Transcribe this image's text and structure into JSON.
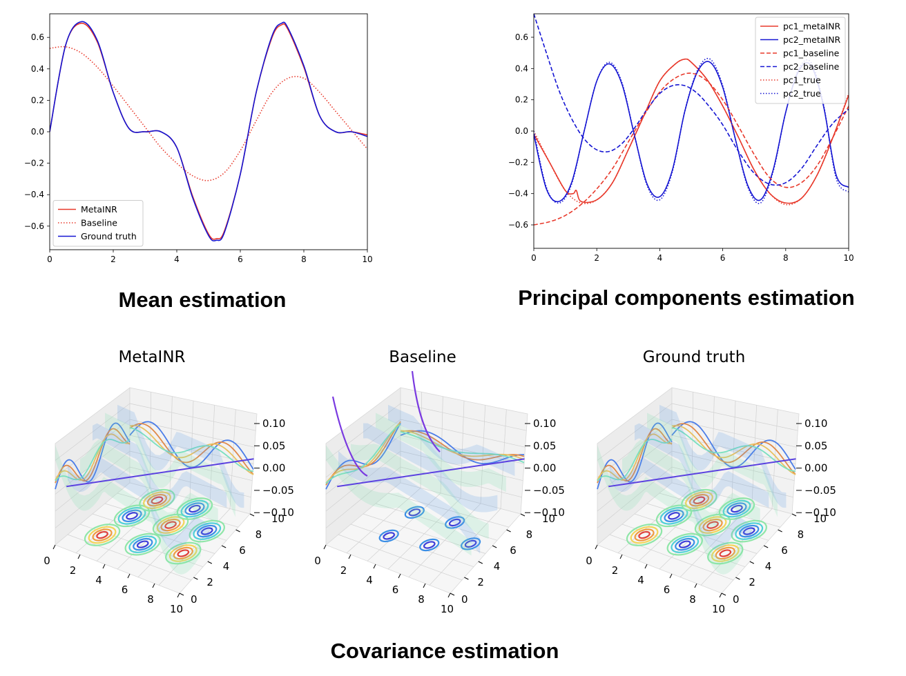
{
  "captions": {
    "mean": "Mean estimation",
    "pc": "Principal components estimation",
    "cov": "Covariance estimation"
  },
  "chart_data": [
    {
      "type": "line",
      "xlim": [
        0,
        10
      ],
      "ylim": [
        -0.75,
        0.75
      ],
      "xticks": [
        0,
        2,
        4,
        6,
        8,
        10
      ],
      "yticks": [
        -0.6,
        -0.4,
        -0.2,
        0.0,
        0.2,
        0.4,
        0.6
      ],
      "legend_position": "lower-left",
      "series": [
        {
          "name": "MetaINR",
          "color": "#e8382a",
          "style": "solid",
          "x": [
            0,
            0.5,
            1.0,
            1.5,
            2.0,
            2.5,
            3.0,
            3.5,
            4.0,
            4.5,
            5.0,
            5.25,
            5.5,
            6.0,
            6.5,
            7.0,
            7.3,
            7.5,
            8.0,
            8.5,
            9.0,
            9.5,
            10.0
          ],
          "y": [
            0.0,
            0.55,
            0.69,
            0.57,
            0.25,
            0.02,
            0.0,
            0.0,
            -0.1,
            -0.41,
            -0.65,
            -0.68,
            -0.63,
            -0.27,
            0.25,
            0.6,
            0.68,
            0.65,
            0.41,
            0.1,
            0.0,
            0.0,
            -0.02
          ]
        },
        {
          "name": "Baseline",
          "color": "#e8382a",
          "style": "dotted",
          "x": [
            0,
            0.5,
            1.0,
            1.5,
            2.0,
            2.5,
            3.0,
            3.5,
            4.0,
            4.5,
            5.0,
            5.5,
            6.0,
            6.5,
            7.0,
            7.5,
            8.0,
            8.5,
            9.0,
            9.5,
            10.0
          ],
          "y": [
            0.53,
            0.54,
            0.5,
            0.41,
            0.29,
            0.16,
            0.03,
            -0.1,
            -0.2,
            -0.28,
            -0.31,
            -0.26,
            -0.12,
            0.07,
            0.25,
            0.34,
            0.34,
            0.25,
            0.13,
            0.01,
            -0.11
          ]
        },
        {
          "name": "Ground truth",
          "color": "#1414d2",
          "style": "solid",
          "x": [
            0,
            0.5,
            1.0,
            1.5,
            2.0,
            2.5,
            3.0,
            3.5,
            4.0,
            4.5,
            5.0,
            5.25,
            5.5,
            6.0,
            6.5,
            7.0,
            7.3,
            7.5,
            8.0,
            8.5,
            9.0,
            9.5,
            10.0
          ],
          "y": [
            0.0,
            0.55,
            0.7,
            0.58,
            0.25,
            0.02,
            0.0,
            0.0,
            -0.1,
            -0.42,
            -0.66,
            -0.69,
            -0.64,
            -0.27,
            0.25,
            0.61,
            0.69,
            0.66,
            0.42,
            0.1,
            0.0,
            0.0,
            -0.03
          ]
        }
      ]
    },
    {
      "type": "line",
      "xlim": [
        0,
        10
      ],
      "ylim": [
        -0.75,
        0.75
      ],
      "xticks": [
        0,
        2,
        4,
        6,
        8,
        10
      ],
      "yticks": [
        -0.6,
        -0.4,
        -0.2,
        0.0,
        0.2,
        0.4,
        0.6
      ],
      "legend_position": "upper-right",
      "series": [
        {
          "name": "pc1_metaINR",
          "color": "#e8382a",
          "style": "solid",
          "x": [
            0,
            0.5,
            1.0,
            1.25,
            1.35,
            1.5,
            2.0,
            2.5,
            3.0,
            3.5,
            4.0,
            4.5,
            4.8,
            5.0,
            5.5,
            6.0,
            6.5,
            7.0,
            7.5,
            8.0,
            8.5,
            9.0,
            9.5,
            10.0
          ],
          "y": [
            -0.02,
            -0.2,
            -0.38,
            -0.4,
            -0.38,
            -0.45,
            -0.44,
            -0.33,
            -0.12,
            0.1,
            0.32,
            0.43,
            0.46,
            0.44,
            0.33,
            0.16,
            -0.04,
            -0.25,
            -0.4,
            -0.46,
            -0.43,
            -0.28,
            -0.04,
            0.23
          ]
        },
        {
          "name": "pc2_metaINR",
          "color": "#1414d2",
          "style": "solid",
          "x": [
            0,
            0.4,
            0.8,
            1.2,
            1.6,
            2.0,
            2.4,
            2.8,
            3.2,
            3.6,
            4.0,
            4.4,
            4.8,
            5.2,
            5.6,
            6.0,
            6.4,
            6.8,
            7.2,
            7.6,
            8.0,
            8.4,
            8.8,
            9.2,
            9.6,
            10.0
          ],
          "y": [
            -0.02,
            -0.37,
            -0.45,
            -0.33,
            0.0,
            0.32,
            0.43,
            0.3,
            -0.03,
            -0.34,
            -0.42,
            -0.25,
            0.13,
            0.38,
            0.44,
            0.28,
            -0.05,
            -0.35,
            -0.44,
            -0.25,
            0.12,
            0.38,
            0.42,
            0.16,
            -0.28,
            -0.36
          ]
        },
        {
          "name": "pc1_baseline",
          "color": "#e8382a",
          "style": "dashed",
          "x": [
            0,
            0.5,
            1.0,
            1.5,
            2.0,
            2.5,
            3.0,
            3.5,
            4.0,
            4.5,
            5.0,
            5.5,
            6.0,
            6.5,
            7.0,
            7.5,
            8.0,
            8.5,
            9.0,
            9.5,
            10.0
          ],
          "y": [
            -0.6,
            -0.58,
            -0.54,
            -0.47,
            -0.37,
            -0.24,
            -0.07,
            0.1,
            0.25,
            0.34,
            0.37,
            0.32,
            0.2,
            0.03,
            -0.15,
            -0.3,
            -0.36,
            -0.33,
            -0.22,
            -0.04,
            0.16
          ]
        },
        {
          "name": "pc2_baseline",
          "color": "#1414d2",
          "style": "dashed",
          "x": [
            0,
            0.4,
            0.8,
            1.2,
            1.6,
            2.0,
            2.4,
            2.8,
            3.2,
            3.6,
            4.0,
            4.4,
            4.8,
            5.2,
            5.6,
            6.0,
            6.5,
            7.0,
            7.5,
            8.0,
            8.5,
            9.0,
            9.5,
            10.0
          ],
          "y": [
            0.75,
            0.5,
            0.26,
            0.08,
            -0.05,
            -0.12,
            -0.13,
            -0.08,
            0.02,
            0.14,
            0.24,
            0.29,
            0.29,
            0.24,
            0.15,
            0.04,
            -0.13,
            -0.27,
            -0.34,
            -0.33,
            -0.24,
            -0.09,
            0.05,
            0.14
          ]
        },
        {
          "name": "pc1_true",
          "color": "#e8382a",
          "style": "dotted",
          "x": [
            0,
            0.5,
            1.0,
            1.5,
            2.0,
            2.5,
            3.0,
            3.5,
            4.0,
            4.5,
            4.8,
            5.0,
            5.5,
            6.0,
            6.5,
            7.0,
            7.5,
            8.0,
            8.5,
            9.0,
            9.5,
            10.0
          ],
          "y": [
            0.0,
            -0.2,
            -0.38,
            -0.46,
            -0.44,
            -0.33,
            -0.12,
            0.1,
            0.32,
            0.43,
            0.46,
            0.44,
            0.33,
            0.16,
            -0.04,
            -0.25,
            -0.4,
            -0.47,
            -0.43,
            -0.28,
            -0.04,
            0.24
          ]
        },
        {
          "name": "pc2_true",
          "color": "#1414d2",
          "style": "dotted",
          "x": [
            0,
            0.4,
            0.8,
            1.2,
            1.6,
            2.0,
            2.4,
            2.8,
            3.2,
            3.6,
            4.0,
            4.4,
            4.8,
            5.2,
            5.6,
            6.0,
            6.4,
            6.8,
            7.2,
            7.6,
            8.0,
            8.4,
            8.8,
            9.2,
            9.6,
            10.0
          ],
          "y": [
            0.0,
            -0.36,
            -0.46,
            -0.34,
            0.0,
            0.32,
            0.44,
            0.31,
            -0.03,
            -0.35,
            -0.44,
            -0.26,
            0.13,
            0.39,
            0.46,
            0.29,
            -0.05,
            -0.36,
            -0.46,
            -0.26,
            0.12,
            0.39,
            0.44,
            0.17,
            -0.3,
            -0.39
          ]
        }
      ]
    },
    {
      "type": "surface3d",
      "title": "MetaINR",
      "xticks": [
        0,
        2,
        4,
        6,
        8,
        10
      ],
      "yticks": [
        0,
        2,
        4,
        6,
        8,
        10
      ],
      "zticks": [
        "0.10",
        "0.05",
        "0.00",
        "−0.05",
        "−0.10"
      ],
      "zlim": [
        -0.1,
        0.1
      ],
      "bumps": 3
    },
    {
      "type": "surface3d",
      "title": "Baseline",
      "xticks": [
        0,
        2,
        4,
        6,
        8,
        10
      ],
      "yticks": [
        0,
        2,
        4,
        6,
        8,
        10
      ],
      "zticks": [
        "0.10",
        "0.05",
        "0.00",
        "−0.05",
        "−0.10"
      ],
      "zlim": [
        -0.1,
        0.1
      ],
      "bumps": 1
    },
    {
      "type": "surface3d",
      "title": "Ground truth",
      "xticks": [
        0,
        2,
        4,
        6,
        8,
        10
      ],
      "yticks": [
        0,
        2,
        4,
        6,
        8,
        10
      ],
      "zticks": [
        "0.10",
        "0.05",
        "0.00",
        "−0.05",
        "−0.10"
      ],
      "zlim": [
        -0.1,
        0.1
      ],
      "bumps": 3
    }
  ]
}
